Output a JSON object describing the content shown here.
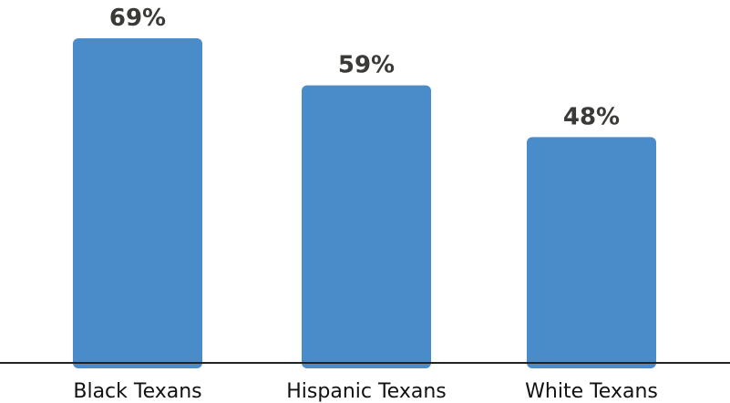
{
  "chart_data": {
    "type": "bar",
    "categories": [
      "Black Texans",
      "Hispanic Texans",
      "White Texans"
    ],
    "values": [
      69,
      59,
      48
    ],
    "value_labels": [
      "69%",
      "59%",
      "48%"
    ],
    "unit": "%",
    "ylim": [
      0,
      69
    ],
    "grid": false,
    "legend": "none",
    "bar_color": "#4a8bc9"
  }
}
